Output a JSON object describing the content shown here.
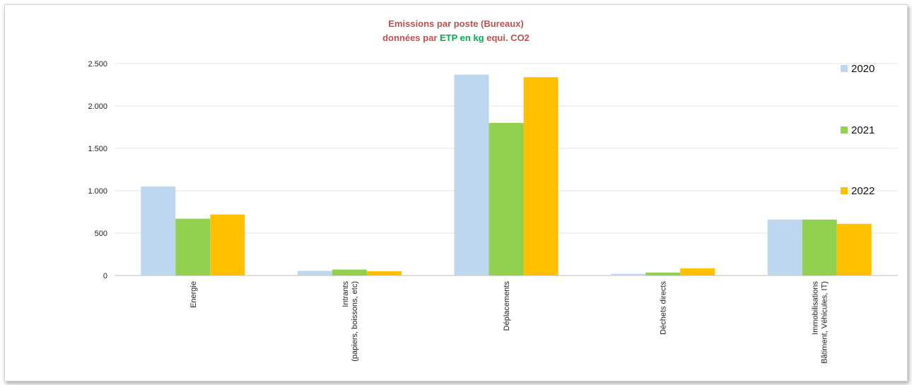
{
  "chart_data": {
    "type": "bar",
    "title_line1": "Emissions par poste (Bureaux)",
    "title_line2_prefix": "données par ",
    "title_line2_highlight": "ETP en kg",
    "title_line2_suffix": " equi. CO2",
    "categories": [
      [
        "Energie"
      ],
      [
        "Intrants",
        "(papiers, boissons, etc)"
      ],
      [
        "Déplacements"
      ],
      [
        "Déchets directs"
      ],
      [
        "Immobilisations",
        "Bâtiment, Véhicules, IT)"
      ]
    ],
    "series": [
      {
        "name": "2020",
        "color": "#bdd7ee",
        "values": [
          1050,
          55,
          2370,
          20,
          660
        ]
      },
      {
        "name": "2021",
        "color": "#92d050",
        "values": [
          670,
          70,
          1800,
          35,
          660
        ]
      },
      {
        "name": "2022",
        "color": "#ffc000",
        "values": [
          720,
          50,
          2340,
          85,
          610
        ]
      }
    ],
    "ylim": [
      0,
      2500
    ],
    "yticks": [
      0,
      500,
      1000,
      1500,
      2000,
      2500
    ],
    "ytick_labels": [
      "0",
      "500",
      "1.000",
      "1.500",
      "2.000",
      "2.500"
    ],
    "grid": true,
    "legend_position": "right",
    "title_color": "#c0504d",
    "highlight_color": "#00b050"
  }
}
